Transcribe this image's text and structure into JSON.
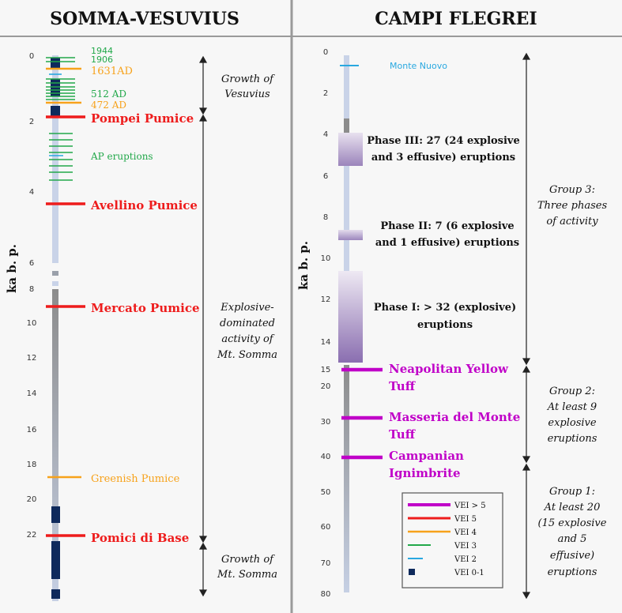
{
  "left": {
    "title": "SOMMA-VESUVIUS",
    "axis_label": "ka b. p.",
    "ticks": [
      "0",
      "2",
      "4",
      "6",
      "8",
      "10",
      "12",
      "14",
      "16",
      "18",
      "20",
      "22"
    ],
    "eruptions": [
      {
        "name": "1944",
        "vei": "VEI 3"
      },
      {
        "name": "1906",
        "vei": "VEI 3"
      },
      {
        "name": "1631AD",
        "vei": "VEI 4"
      },
      {
        "name": "512 AD",
        "vei": "VEI 3"
      },
      {
        "name": "472 AD",
        "vei": "VEI 4"
      },
      {
        "name": "Pompei Pumice",
        "vei": "VEI 5"
      },
      {
        "name": "AP eruptions",
        "vei": "VEI 3"
      },
      {
        "name": "Avellino Pumice",
        "vei": "VEI 5"
      },
      {
        "name": "Mercato Pumice",
        "vei": "VEI 5"
      },
      {
        "name": "Greenish Pumice",
        "vei": "VEI 4"
      },
      {
        "name": "Pomici di Base",
        "vei": "VEI 5"
      }
    ],
    "periods": [
      {
        "lines": [
          "Growth of",
          "Vesuvius"
        ]
      },
      {
        "lines": [
          "Explosive-",
          "dominated",
          "activity of",
          "Mt. Somma"
        ]
      },
      {
        "lines": [
          "Growth of",
          "Mt. Somma"
        ]
      }
    ]
  },
  "right": {
    "title": "CAMPI FLEGREI",
    "axis_label": "ka b. p.",
    "ticks": [
      "0",
      "2",
      "4",
      "6",
      "8",
      "10",
      "12",
      "14",
      "15",
      "20",
      "30",
      "40",
      "50",
      "60",
      "70",
      "80"
    ],
    "phases": [
      {
        "lines": [
          "Phase III: 27 (24 explosive",
          "and 3 effusive) eruptions"
        ]
      },
      {
        "lines": [
          "Phase II: 7 (6 explosive",
          "and 1 effusive) eruptions"
        ]
      },
      {
        "lines": [
          "Phase I: > 32 (explosive)",
          "eruptions"
        ]
      }
    ],
    "eruptions": [
      {
        "lines": [
          "Monte Nuovo"
        ],
        "vei": "VEI 2"
      },
      {
        "lines": [
          "Neapolitan Yellow",
          "Tuff"
        ],
        "vei": "VEI > 5"
      },
      {
        "lines": [
          "Masseria del Monte",
          "Tuff"
        ],
        "vei": "VEI > 5"
      },
      {
        "lines": [
          "Campanian",
          "Ignimbrite"
        ],
        "vei": "VEI > 5"
      }
    ],
    "groups": [
      {
        "lines": [
          "Group 3:",
          "Three phases",
          "of activity"
        ]
      },
      {
        "lines": [
          "Group 2:",
          "At least 9",
          "explosive",
          "eruptions"
        ]
      },
      {
        "lines": [
          "Group 1:",
          "At least 20",
          "(15 explosive",
          "and 5",
          "effusive)",
          "eruptions"
        ]
      }
    ]
  },
  "legend": [
    {
      "label": "VEI > 5",
      "color": "#c000c8"
    },
    {
      "label": "VEI 5",
      "color": "#ee1c1c"
    },
    {
      "label": "VEI 4",
      "color": "#f7a21b"
    },
    {
      "label": "VEI 3",
      "color": "#22a84a"
    },
    {
      "label": "VEI 2",
      "color": "#29a8e0"
    },
    {
      "label": "VEI 0-1",
      "color": "#0f2a5c"
    }
  ]
}
